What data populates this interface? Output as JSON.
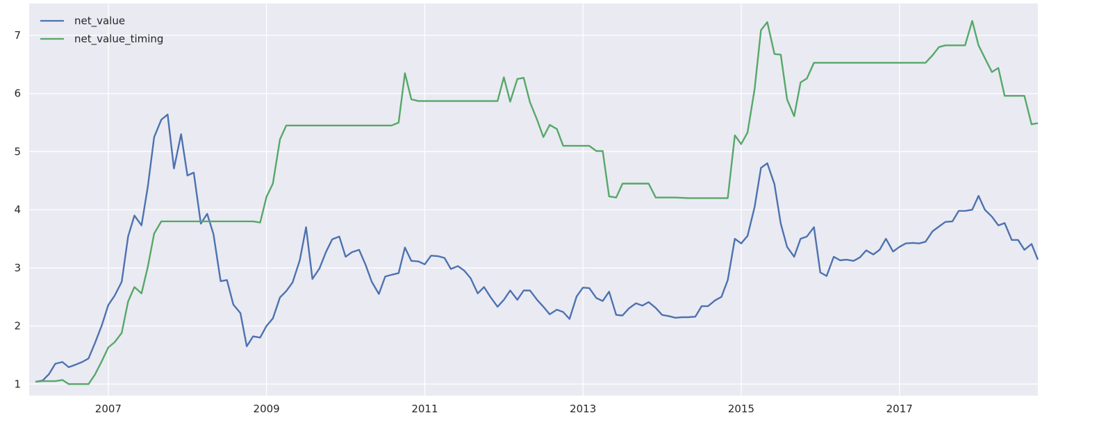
{
  "chart_data": {
    "type": "line",
    "title": "",
    "xlabel": "",
    "ylabel": "",
    "xlim": [
      2006.0,
      2018.75
    ],
    "ylim": [
      0.8,
      7.55
    ],
    "x_ticks": [
      2007,
      2009,
      2011,
      2013,
      2015,
      2017
    ],
    "x_tick_labels": [
      "2007",
      "2009",
      "2011",
      "2013",
      "2015",
      "2017"
    ],
    "y_ticks": [
      1,
      2,
      3,
      4,
      5,
      6,
      7
    ],
    "y_tick_labels": [
      "1",
      "2",
      "3",
      "4",
      "5",
      "6",
      "7"
    ],
    "grid": true,
    "legend_position": "top-left",
    "series": [
      {
        "name": "net_value",
        "color": "#4c72b0",
        "points": [
          [
            2006.08,
            1.04
          ],
          [
            2006.17,
            1.06
          ],
          [
            2006.25,
            1.17
          ],
          [
            2006.33,
            1.35
          ],
          [
            2006.42,
            1.38
          ],
          [
            2006.5,
            1.29
          ],
          [
            2006.58,
            1.33
          ],
          [
            2006.67,
            1.38
          ],
          [
            2006.75,
            1.44
          ],
          [
            2006.83,
            1.7
          ],
          [
            2006.92,
            2.02
          ],
          [
            2007.0,
            2.36
          ],
          [
            2007.08,
            2.52
          ],
          [
            2007.17,
            2.76
          ],
          [
            2007.25,
            3.54
          ],
          [
            2007.33,
            3.9
          ],
          [
            2007.42,
            3.73
          ],
          [
            2007.5,
            4.4
          ],
          [
            2007.58,
            5.25
          ],
          [
            2007.67,
            5.55
          ],
          [
            2007.75,
            5.64
          ],
          [
            2007.83,
            4.71
          ],
          [
            2007.92,
            5.3
          ],
          [
            2008.0,
            4.59
          ],
          [
            2008.08,
            4.64
          ],
          [
            2008.17,
            3.76
          ],
          [
            2008.25,
            3.93
          ],
          [
            2008.33,
            3.58
          ],
          [
            2008.42,
            2.77
          ],
          [
            2008.5,
            2.79
          ],
          [
            2008.58,
            2.37
          ],
          [
            2008.67,
            2.22
          ],
          [
            2008.75,
            1.65
          ],
          [
            2008.83,
            1.82
          ],
          [
            2008.92,
            1.8
          ],
          [
            2009.0,
            2.0
          ],
          [
            2009.08,
            2.13
          ],
          [
            2009.17,
            2.49
          ],
          [
            2009.25,
            2.6
          ],
          [
            2009.33,
            2.75
          ],
          [
            2009.42,
            3.13
          ],
          [
            2009.5,
            3.7
          ],
          [
            2009.58,
            2.81
          ],
          [
            2009.67,
            2.99
          ],
          [
            2009.75,
            3.27
          ],
          [
            2009.83,
            3.49
          ],
          [
            2009.92,
            3.54
          ],
          [
            2010.0,
            3.19
          ],
          [
            2010.08,
            3.27
          ],
          [
            2010.17,
            3.31
          ],
          [
            2010.25,
            3.06
          ],
          [
            2010.33,
            2.76
          ],
          [
            2010.42,
            2.55
          ],
          [
            2010.5,
            2.85
          ],
          [
            2010.58,
            2.88
          ],
          [
            2010.67,
            2.91
          ],
          [
            2010.75,
            3.35
          ],
          [
            2010.83,
            3.12
          ],
          [
            2010.92,
            3.11
          ],
          [
            2011.0,
            3.06
          ],
          [
            2011.08,
            3.21
          ],
          [
            2011.17,
            3.2
          ],
          [
            2011.25,
            3.17
          ],
          [
            2011.33,
            2.98
          ],
          [
            2011.42,
            3.03
          ],
          [
            2011.5,
            2.95
          ],
          [
            2011.58,
            2.82
          ],
          [
            2011.67,
            2.56
          ],
          [
            2011.75,
            2.67
          ],
          [
            2011.83,
            2.5
          ],
          [
            2011.92,
            2.33
          ],
          [
            2012.0,
            2.45
          ],
          [
            2012.08,
            2.61
          ],
          [
            2012.17,
            2.45
          ],
          [
            2012.25,
            2.61
          ],
          [
            2012.33,
            2.61
          ],
          [
            2012.42,
            2.45
          ],
          [
            2012.5,
            2.33
          ],
          [
            2012.58,
            2.2
          ],
          [
            2012.67,
            2.28
          ],
          [
            2012.75,
            2.24
          ],
          [
            2012.83,
            2.12
          ],
          [
            2012.92,
            2.51
          ],
          [
            2013.0,
            2.66
          ],
          [
            2013.08,
            2.65
          ],
          [
            2013.17,
            2.48
          ],
          [
            2013.25,
            2.43
          ],
          [
            2013.33,
            2.59
          ],
          [
            2013.42,
            2.19
          ],
          [
            2013.5,
            2.18
          ],
          [
            2013.58,
            2.3
          ],
          [
            2013.67,
            2.39
          ],
          [
            2013.75,
            2.35
          ],
          [
            2013.83,
            2.41
          ],
          [
            2013.92,
            2.31
          ],
          [
            2014.0,
            2.19
          ],
          [
            2014.08,
            2.17
          ],
          [
            2014.17,
            2.14
          ],
          [
            2014.25,
            2.15
          ],
          [
            2014.33,
            2.15
          ],
          [
            2014.42,
            2.16
          ],
          [
            2014.5,
            2.34
          ],
          [
            2014.58,
            2.34
          ],
          [
            2014.67,
            2.44
          ],
          [
            2014.75,
            2.5
          ],
          [
            2014.83,
            2.79
          ],
          [
            2014.92,
            3.5
          ],
          [
            2015.0,
            3.42
          ],
          [
            2015.08,
            3.55
          ],
          [
            2015.17,
            4.05
          ],
          [
            2015.25,
            4.72
          ],
          [
            2015.33,
            4.8
          ],
          [
            2015.42,
            4.44
          ],
          [
            2015.5,
            3.76
          ],
          [
            2015.58,
            3.36
          ],
          [
            2015.67,
            3.19
          ],
          [
            2015.75,
            3.5
          ],
          [
            2015.83,
            3.54
          ],
          [
            2015.92,
            3.7
          ],
          [
            2016.0,
            2.92
          ],
          [
            2016.08,
            2.86
          ],
          [
            2016.17,
            3.19
          ],
          [
            2016.25,
            3.13
          ],
          [
            2016.33,
            3.14
          ],
          [
            2016.42,
            3.12
          ],
          [
            2016.5,
            3.18
          ],
          [
            2016.58,
            3.3
          ],
          [
            2016.67,
            3.23
          ],
          [
            2016.75,
            3.31
          ],
          [
            2016.83,
            3.5
          ],
          [
            2016.92,
            3.28
          ],
          [
            2017.0,
            3.36
          ],
          [
            2017.08,
            3.42
          ],
          [
            2017.17,
            3.43
          ],
          [
            2017.25,
            3.42
          ],
          [
            2017.33,
            3.45
          ],
          [
            2017.42,
            3.63
          ],
          [
            2017.5,
            3.71
          ],
          [
            2017.58,
            3.79
          ],
          [
            2017.67,
            3.8
          ],
          [
            2017.75,
            3.98
          ],
          [
            2017.83,
            3.98
          ],
          [
            2017.92,
            4.0
          ],
          [
            2018.0,
            4.24
          ],
          [
            2018.08,
            4.0
          ],
          [
            2018.17,
            3.88
          ],
          [
            2018.25,
            3.73
          ],
          [
            2018.33,
            3.77
          ],
          [
            2018.42,
            3.48
          ],
          [
            2018.5,
            3.48
          ],
          [
            2018.58,
            3.31
          ],
          [
            2018.67,
            3.41
          ],
          [
            2018.75,
            3.14
          ]
        ]
      },
      {
        "name": "net_value_timing",
        "color": "#55a868",
        "points": [
          [
            2006.08,
            1.04
          ],
          [
            2006.17,
            1.05
          ],
          [
            2006.25,
            1.05
          ],
          [
            2006.33,
            1.05
          ],
          [
            2006.42,
            1.07
          ],
          [
            2006.5,
            1.0
          ],
          [
            2006.58,
            1.0
          ],
          [
            2006.67,
            1.0
          ],
          [
            2006.75,
            1.0
          ],
          [
            2006.83,
            1.16
          ],
          [
            2006.92,
            1.4
          ],
          [
            2007.0,
            1.63
          ],
          [
            2007.08,
            1.72
          ],
          [
            2007.17,
            1.88
          ],
          [
            2007.25,
            2.42
          ],
          [
            2007.33,
            2.67
          ],
          [
            2007.42,
            2.56
          ],
          [
            2007.5,
            3.02
          ],
          [
            2007.58,
            3.59
          ],
          [
            2007.67,
            3.8
          ],
          [
            2007.75,
            3.8
          ],
          [
            2008.0,
            3.8
          ],
          [
            2008.5,
            3.8
          ],
          [
            2008.83,
            3.8
          ],
          [
            2008.92,
            3.78
          ],
          [
            2009.0,
            4.22
          ],
          [
            2009.08,
            4.45
          ],
          [
            2009.17,
            5.21
          ],
          [
            2009.25,
            5.45
          ],
          [
            2009.33,
            5.45
          ],
          [
            2010.0,
            5.45
          ],
          [
            2010.58,
            5.45
          ],
          [
            2010.67,
            5.5
          ],
          [
            2010.75,
            6.35
          ],
          [
            2010.83,
            5.9
          ],
          [
            2010.92,
            5.87
          ],
          [
            2011.0,
            5.87
          ],
          [
            2011.5,
            5.87
          ],
          [
            2011.92,
            5.87
          ],
          [
            2012.0,
            6.28
          ],
          [
            2012.08,
            5.86
          ],
          [
            2012.17,
            6.25
          ],
          [
            2012.25,
            6.27
          ],
          [
            2012.33,
            5.85
          ],
          [
            2012.42,
            5.55
          ],
          [
            2012.5,
            5.25
          ],
          [
            2012.58,
            5.46
          ],
          [
            2012.67,
            5.39
          ],
          [
            2012.75,
            5.1
          ],
          [
            2012.83,
            5.1
          ],
          [
            2013.0,
            5.1
          ],
          [
            2013.08,
            5.1
          ],
          [
            2013.17,
            5.01
          ],
          [
            2013.25,
            5.01
          ],
          [
            2013.33,
            4.23
          ],
          [
            2013.42,
            4.21
          ],
          [
            2013.5,
            4.45
          ],
          [
            2013.58,
            4.45
          ],
          [
            2013.67,
            4.45
          ],
          [
            2013.83,
            4.45
          ],
          [
            2013.92,
            4.21
          ],
          [
            2014.0,
            4.21
          ],
          [
            2014.17,
            4.21
          ],
          [
            2014.33,
            4.2
          ],
          [
            2014.5,
            4.2
          ],
          [
            2014.67,
            4.2
          ],
          [
            2014.83,
            4.2
          ],
          [
            2014.92,
            5.28
          ],
          [
            2015.0,
            5.13
          ],
          [
            2015.08,
            5.33
          ],
          [
            2015.17,
            6.08
          ],
          [
            2015.25,
            7.09
          ],
          [
            2015.33,
            7.23
          ],
          [
            2015.42,
            6.68
          ],
          [
            2015.5,
            6.67
          ],
          [
            2015.58,
            5.9
          ],
          [
            2015.67,
            5.61
          ],
          [
            2015.75,
            6.19
          ],
          [
            2015.83,
            6.26
          ],
          [
            2015.92,
            6.53
          ],
          [
            2016.0,
            6.53
          ],
          [
            2016.5,
            6.53
          ],
          [
            2017.0,
            6.53
          ],
          [
            2017.33,
            6.53
          ],
          [
            2017.42,
            6.66
          ],
          [
            2017.5,
            6.8
          ],
          [
            2017.58,
            6.83
          ],
          [
            2017.67,
            6.83
          ],
          [
            2017.75,
            6.83
          ],
          [
            2017.83,
            6.83
          ],
          [
            2017.92,
            7.25
          ],
          [
            2018.0,
            6.83
          ],
          [
            2018.08,
            6.61
          ],
          [
            2018.17,
            6.37
          ],
          [
            2018.25,
            6.44
          ],
          [
            2018.33,
            5.96
          ],
          [
            2018.42,
            5.96
          ],
          [
            2018.5,
            5.96
          ],
          [
            2018.58,
            5.96
          ],
          [
            2018.67,
            5.47
          ],
          [
            2018.75,
            5.49
          ]
        ]
      }
    ]
  }
}
